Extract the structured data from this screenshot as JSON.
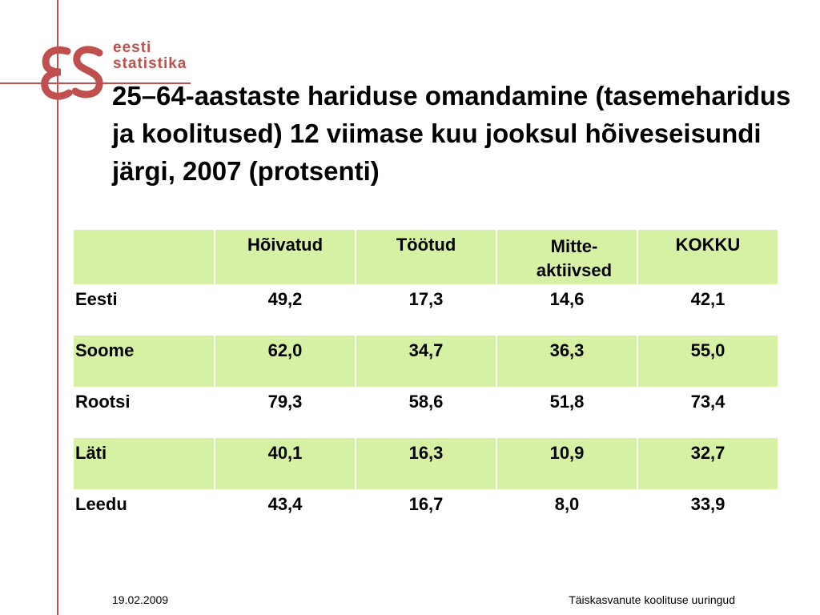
{
  "logo": {
    "line1": "eesti",
    "line2": "statistika",
    "accent_color": "#c0504d"
  },
  "title": "25–64-aastaste hariduse omandamine (tasemeharidus ja koolitused) 12 viimase kuu jooksul hõiveseisundi järgi, 2007 (protsenti)",
  "table": {
    "headers": [
      "",
      "Hõivatud",
      "Töötud",
      "Mitte-aktiivsed",
      "KOKKU"
    ],
    "header_mitte_line1": "Mitte-",
    "header_mitte_line2": "aktiivsed",
    "highlight_color": "#d6f1a4",
    "rows": [
      {
        "name": "Eesti",
        "values": [
          "49,2",
          "17,3",
          "14,6",
          "42,1"
        ]
      },
      {
        "name": "Soome",
        "values": [
          "62,0",
          "34,7",
          "36,3",
          "55,0"
        ]
      },
      {
        "name": "Rootsi",
        "values": [
          "79,3",
          "58,6",
          "51,8",
          "73,4"
        ]
      },
      {
        "name": "Läti",
        "values": [
          "40,1",
          "16,3",
          "10,9",
          "32,7"
        ]
      },
      {
        "name": "Leedu",
        "values": [
          "43,4",
          "16,7",
          "8,0",
          "33,9"
        ]
      }
    ]
  },
  "footer": {
    "date": "19.02.2009",
    "source": "Täiskasvanute koolituse uuringud"
  }
}
